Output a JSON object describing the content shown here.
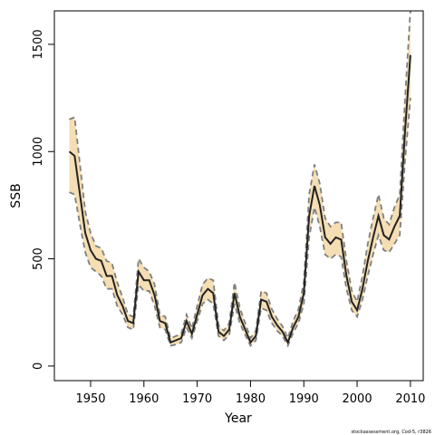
{
  "chart_data": {
    "type": "line",
    "xlabel": "Year",
    "ylabel": "SSB",
    "footnote": "stockassessment.org, Cod-5, r3826",
    "x": [
      1946,
      1947,
      1948,
      1949,
      1950,
      1951,
      1952,
      1953,
      1954,
      1955,
      1956,
      1957,
      1958,
      1959,
      1960,
      1961,
      1962,
      1963,
      1964,
      1965,
      1966,
      1967,
      1968,
      1969,
      1970,
      1971,
      1972,
      1973,
      1974,
      1975,
      1976,
      1977,
      1978,
      1979,
      1980,
      1981,
      1982,
      1983,
      1984,
      1985,
      1986,
      1987,
      1988,
      1989,
      1990,
      1991,
      1992,
      1993,
      1994,
      1995,
      1996,
      1997,
      1998,
      1999,
      2000,
      2001,
      2002,
      2003,
      2004,
      2005,
      2006,
      2007,
      2008,
      2009,
      2010
    ],
    "values": [
      1000,
      980,
      800,
      620,
      540,
      500,
      490,
      420,
      420,
      330,
      280,
      210,
      200,
      440,
      400,
      400,
      330,
      210,
      200,
      110,
      120,
      130,
      210,
      150,
      240,
      330,
      360,
      340,
      160,
      140,
      170,
      340,
      230,
      170,
      110,
      140,
      310,
      300,
      230,
      190,
      160,
      110,
      180,
      230,
      340,
      700,
      840,
      750,
      600,
      570,
      600,
      590,
      420,
      300,
      260,
      360,
      490,
      600,
      700,
      610,
      590,
      650,
      700,
      1100,
      1450
    ],
    "upper": [
      1150,
      1160,
      940,
      720,
      620,
      560,
      550,
      490,
      480,
      390,
      320,
      240,
      230,
      500,
      460,
      440,
      380,
      240,
      230,
      130,
      140,
      150,
      240,
      175,
      280,
      380,
      410,
      400,
      190,
      165,
      200,
      390,
      270,
      200,
      130,
      165,
      350,
      340,
      265,
      220,
      185,
      130,
      210,
      265,
      390,
      800,
      940,
      850,
      690,
      650,
      670,
      670,
      490,
      350,
      300,
      420,
      570,
      690,
      800,
      690,
      660,
      740,
      800,
      1250,
      1660
    ],
    "lower": [
      810,
      800,
      660,
      530,
      460,
      440,
      420,
      360,
      360,
      280,
      240,
      180,
      170,
      380,
      350,
      350,
      280,
      180,
      170,
      95,
      100,
      110,
      180,
      130,
      210,
      290,
      310,
      290,
      140,
      120,
      145,
      290,
      200,
      145,
      95,
      120,
      270,
      260,
      200,
      165,
      140,
      95,
      155,
      200,
      290,
      600,
      740,
      650,
      520,
      500,
      520,
      510,
      360,
      260,
      230,
      310,
      420,
      520,
      610,
      540,
      530,
      570,
      610,
      960,
      1250
    ],
    "line_color": "#222222",
    "band_color": "#f5deb3",
    "bound_color": "#7f7f7f",
    "xlim": [
      1943.2,
      2012.4
    ],
    "ylim": [
      -68,
      1656
    ],
    "xticks": [
      1950,
      1960,
      1970,
      1980,
      1990,
      2000,
      2010
    ],
    "yticks": [
      0,
      500,
      1000,
      1500
    ]
  }
}
